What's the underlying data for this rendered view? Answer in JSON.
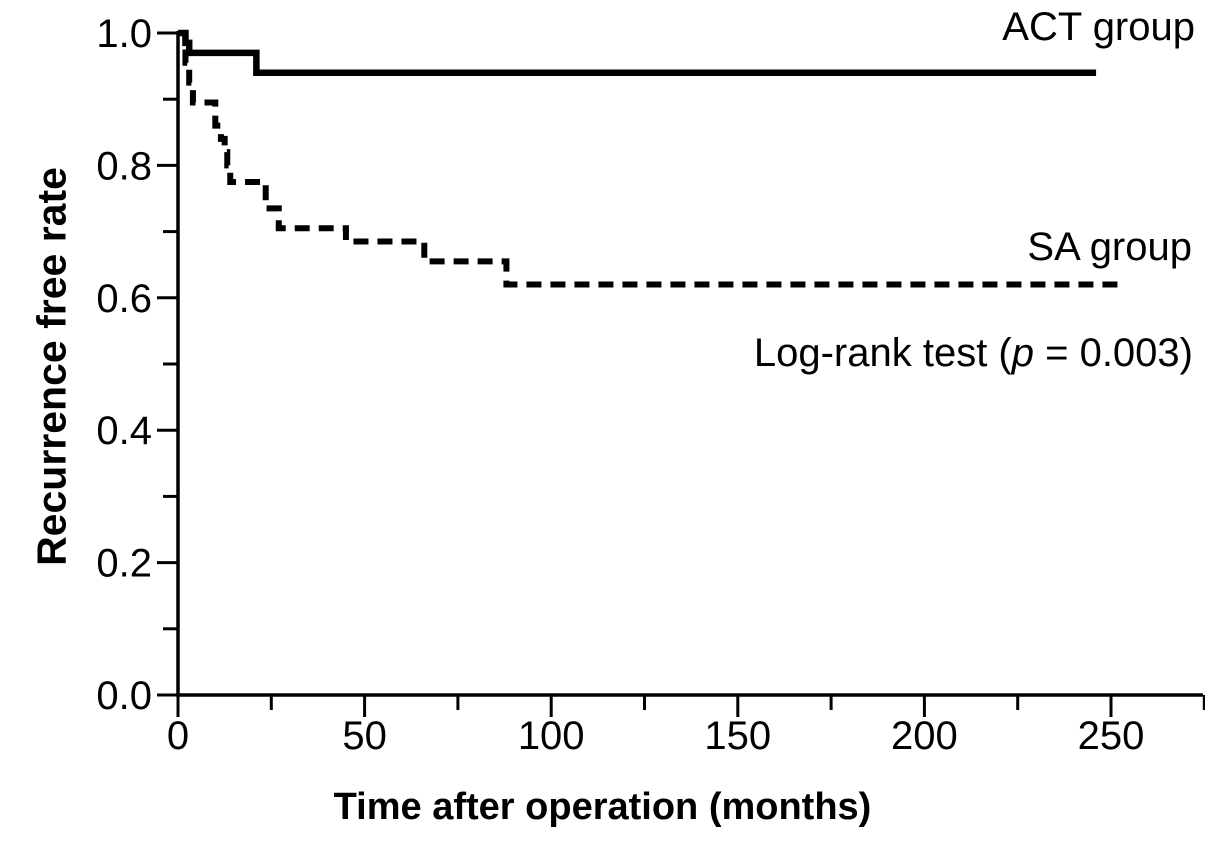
{
  "figure": {
    "background_color": "#ffffff",
    "ink_color": "#000000",
    "y_axis": {
      "label": "Recurrence free rate",
      "tick_labels": [
        "1.0",
        "0.8",
        "0.6",
        "0.4",
        "0.2",
        "0.0"
      ],
      "tick_values": [
        1.0,
        0.8,
        0.6,
        0.4,
        0.2,
        0.0
      ],
      "minor_tick_values": [
        0.9,
        0.7,
        0.5,
        0.3,
        0.1
      ]
    },
    "x_axis": {
      "label": "Time after operation (months)",
      "tick_labels": [
        "0",
        "50",
        "100",
        "150",
        "200",
        "250"
      ],
      "tick_values": [
        0,
        50,
        100,
        150,
        200,
        250
      ],
      "minor_tick_values": [
        25,
        75,
        125,
        175,
        225,
        275
      ]
    },
    "annotations": {
      "act_group": "ACT group",
      "sa_group": "SA group",
      "logrank": {
        "prefix": "Log-rank test (",
        "p": "p",
        "suffix": " = 0.003)"
      }
    }
  },
  "chart_data": {
    "type": "line",
    "subtype": "kaplan-meier-step",
    "title": "",
    "xlabel": "Time after operation (months)",
    "ylabel": "Recurrence free rate",
    "xlim": [
      0,
      276
    ],
    "ylim": [
      0.0,
      1.0
    ],
    "x_ticks": [
      0,
      50,
      100,
      150,
      200,
      250
    ],
    "y_ticks": [
      1.0,
      0.8,
      0.6,
      0.4,
      0.2,
      0.0
    ],
    "grid": false,
    "legend_position": "labels-at-line-right",
    "annotation": "Log-rank test (p = 0.003)",
    "series": [
      {
        "name": "ACT group",
        "line_style": "solid",
        "color": "#000000",
        "points": [
          [
            0,
            1.0
          ],
          [
            2,
            0.985
          ],
          [
            3,
            0.97
          ],
          [
            21,
            0.94
          ],
          [
            246,
            0.94
          ]
        ]
      },
      {
        "name": "SA group",
        "line_style": "dashed",
        "color": "#000000",
        "points": [
          [
            0,
            1.0
          ],
          [
            2,
            0.955
          ],
          [
            3,
            0.925
          ],
          [
            4,
            0.895
          ],
          [
            10,
            0.86
          ],
          [
            11.5,
            0.84
          ],
          [
            12.5,
            0.82
          ],
          [
            13.2,
            0.8
          ],
          [
            14,
            0.775
          ],
          [
            23.5,
            0.735
          ],
          [
            27,
            0.705
          ],
          [
            45,
            0.685
          ],
          [
            66,
            0.655
          ],
          [
            88,
            0.62
          ],
          [
            252,
            0.62
          ]
        ]
      }
    ]
  }
}
